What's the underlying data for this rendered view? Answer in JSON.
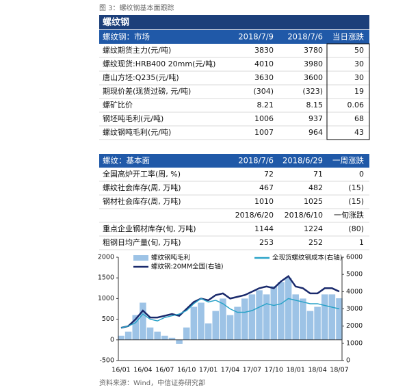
{
  "caption": "图 3：螺纹钢基本面跟踪",
  "table": {
    "title": "螺纹钢",
    "sections": [
      {
        "header": [
          "螺纹钢：市场",
          "2018/7/9",
          "2018/7/6",
          "当日涨跌"
        ],
        "rows": [
          [
            "螺纹期货主力(元/吨)",
            "3830",
            "3780",
            "50"
          ],
          [
            "螺纹现货:HRB400 20mm(元/吨)",
            "4010",
            "3980",
            "30"
          ],
          [
            "唐山方坯:Q235(元/吨)",
            "3630",
            "3600",
            "30"
          ],
          [
            "期现价差(现货过磅, 元/吨)",
            "(304)",
            "(323)",
            "19"
          ],
          [
            "螺矿比价",
            "8.21",
            "8.15",
            "0.06"
          ],
          [
            "钢坯吨毛利(元/吨)",
            "1006",
            "937",
            "68"
          ],
          [
            "螺纹钢吨毛利(元/吨)",
            "1007",
            "964",
            "43"
          ]
        ]
      },
      {
        "header": [
          "螺纹：基本面",
          "2018/7/6",
          "2018/6/29",
          "一周涨跌"
        ],
        "rows": [
          [
            "全国高炉开工率(周, %)",
            "72",
            "71",
            "0"
          ],
          [
            "螺纹社会库存(周, 万吨)",
            "467",
            "482",
            "(15)"
          ],
          [
            "钢材社会库存(周, 万吨)",
            "1010",
            "1025",
            "(15)"
          ],
          [
            null,
            "2018/6/20",
            "2018/6/10",
            "一旬涨跌"
          ],
          [
            "重点企业钢材库存(旬, 万吨)",
            "1144",
            "1224",
            "(80)"
          ],
          [
            "粗钢日均产量(旬, 万吨)",
            "253",
            "252",
            "1"
          ]
        ]
      }
    ]
  },
  "chart_data": {
    "type": "combo",
    "categories": [
      "16/01",
      null,
      null,
      "16/04",
      null,
      null,
      "16/07",
      null,
      null,
      "16/10",
      null,
      null,
      "17/01",
      null,
      null,
      "17/04",
      null,
      null,
      "17/07",
      null,
      null,
      "17/10",
      null,
      null,
      "18/01",
      null,
      null,
      "18/04",
      null,
      null,
      "18/07"
    ],
    "series": [
      {
        "name": "螺纹钢吨毛利",
        "type": "bar",
        "color": "#9dc3e6",
        "values": [
          100,
          200,
          600,
          900,
          300,
          200,
          100,
          50,
          -100,
          300,
          800,
          900,
          400,
          700,
          1000,
          600,
          800,
          1000,
          1100,
          1200,
          1100,
          1300,
          1400,
          1500,
          1100,
          1000,
          700,
          800,
          1100,
          1100,
          1007
        ]
      },
      {
        "name": "螺纹钢:20MM全国(右轴)",
        "type": "line",
        "axis": "y2",
        "color": "#1a2a6c",
        "values": [
          1900,
          2000,
          2400,
          2900,
          2500,
          2500,
          2600,
          2700,
          2600,
          3000,
          3400,
          3600,
          3500,
          3800,
          3900,
          3600,
          3700,
          3800,
          4000,
          4200,
          4300,
          4200,
          4600,
          4900,
          4300,
          4200,
          3900,
          3900,
          4200,
          4200,
          4010
        ]
      },
      {
        "name": "全现货螺纹钢成本(右轴)",
        "type": "line",
        "axis": "y2",
        "color": "#2aa3c8",
        "values": [
          1900,
          2000,
          2200,
          2700,
          2400,
          2300,
          2500,
          2600,
          2700,
          2900,
          3300,
          3600,
          3400,
          3500,
          3300,
          3000,
          2800,
          2800,
          2900,
          3100,
          3300,
          3200,
          3300,
          3600,
          3500,
          3400,
          3300,
          3300,
          3200,
          3100,
          3000
        ]
      }
    ],
    "ylim": [
      -500,
      2000
    ],
    "yticks": [
      -500,
      0,
      500,
      1000,
      1500,
      2000
    ],
    "y2lim": [
      0,
      6000
    ],
    "y2ticks": [
      0,
      1000,
      2000,
      3000,
      4000,
      5000,
      6000
    ]
  },
  "source": "资料来源：Wind，中信证券研究部"
}
